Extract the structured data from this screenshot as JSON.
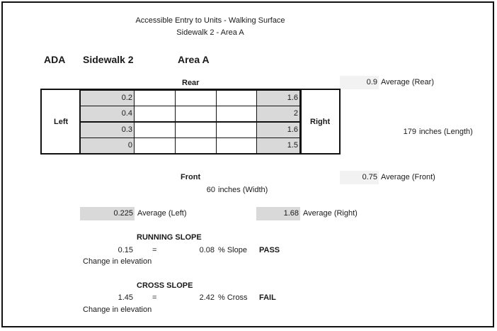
{
  "header": {
    "title_line1": "Accessible Entry to Units - Walking Surface",
    "title_line2": "Sidewalk 2 - Area A"
  },
  "labels": {
    "ada": "ADA",
    "sidewalk": "Sidewalk 2",
    "area": "Area A",
    "rear": "Rear",
    "left": "Left",
    "right": "Right",
    "front": "Front"
  },
  "grid": {
    "left_col": [
      "0.2",
      "0.4",
      "0.3",
      "0"
    ],
    "right_col": [
      "1.6",
      "2",
      "1.6",
      "1.5"
    ]
  },
  "averages": {
    "rear_value": "0.9",
    "rear_label": "Average (Rear)",
    "front_value": "0.75",
    "front_label": "Average (Front)",
    "left_value": "0.225",
    "left_label": "Average (Left)",
    "right_value": "1.68",
    "right_label": "Average (Right)"
  },
  "dimensions": {
    "length_value": "179",
    "length_label": "inches (Length)",
    "width_value": "60",
    "width_label": "inches (Width)"
  },
  "running_slope": {
    "heading": "RUNNING SLOPE",
    "change": "0.15",
    "equals": "=",
    "result": "0.08",
    "unit": "% Slope",
    "status": "PASS",
    "caption": "Change in elevation"
  },
  "cross_slope": {
    "heading": "CROSS SLOPE",
    "change": "1.45",
    "equals": "=",
    "result": "2.42",
    "unit": "% Cross",
    "status": "FAIL",
    "caption": "Change in elevation"
  }
}
